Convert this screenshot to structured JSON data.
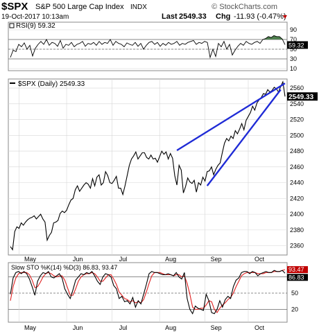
{
  "header": {
    "symbol": "$SPX",
    "name": "S&P 500 Large Cap Index",
    "exchange": "INDX",
    "datetime": "19-Oct-2017 10:13am",
    "last_label": "Last",
    "last_value": "2549.33",
    "chg_label": "Chg",
    "chg_value": "-11.93 (-0.47%)",
    "brand": "© StockCharts.com"
  },
  "chart_data": [
    {
      "type": "line",
      "panel": "rsi",
      "title": "RSI(9) 59.32",
      "current_label": "59.32",
      "ylim": [
        10,
        100
      ],
      "y_ticks": [
        10,
        30,
        50,
        70,
        90
      ],
      "reference_lines": [
        30,
        50,
        70
      ],
      "x": [
        0,
        1,
        2,
        3,
        4,
        5,
        6,
        7,
        8,
        9,
        10,
        11,
        12,
        13,
        14,
        15,
        16,
        17,
        18,
        19,
        20,
        21,
        22,
        23,
        24,
        25,
        26,
        27,
        28,
        29,
        30,
        31,
        32,
        33,
        34,
        35,
        36,
        37,
        38,
        39,
        40,
        41,
        42,
        43,
        44,
        45,
        46,
        47,
        48,
        49,
        50,
        51,
        52,
        53,
        54,
        55,
        56,
        57,
        58,
        59,
        60,
        61,
        62,
        63,
        64,
        65,
        66,
        67,
        68,
        69,
        70,
        71,
        72,
        73,
        74,
        75,
        76,
        77,
        78,
        79,
        80,
        81,
        82,
        83,
        84,
        85,
        86,
        87,
        88,
        89,
        90,
        91,
        92,
        93,
        94,
        95,
        96,
        97,
        98,
        99
      ],
      "values": [
        33,
        48,
        45,
        60,
        55,
        63,
        50,
        58,
        36,
        52,
        60,
        66,
        60,
        70,
        58,
        64,
        62,
        56,
        68,
        52,
        60,
        58,
        64,
        55,
        60,
        62,
        66,
        56,
        62,
        60,
        64,
        58,
        66,
        60,
        64,
        62,
        70,
        58,
        66,
        62,
        60,
        55,
        63,
        60,
        58,
        64,
        56,
        62,
        50,
        58,
        64,
        66,
        60,
        64,
        56,
        62,
        58,
        64,
        60,
        62,
        66,
        58,
        62,
        60,
        64,
        66,
        68,
        60,
        64,
        62,
        66,
        64,
        33,
        50,
        35,
        62,
        55,
        66,
        50,
        60,
        38,
        48,
        56,
        62,
        58,
        66,
        62,
        60,
        64,
        66,
        62,
        70,
        72,
        76,
        74,
        78,
        76,
        76,
        71,
        59.32
      ],
      "overbought_fill_above": 70
    },
    {
      "type": "line",
      "panel": "price",
      "title": "$SPX (Daily) 2549.33",
      "current_label": "2549.33",
      "ylim": [
        2350,
        2568
      ],
      "y_ticks": [
        2360,
        2380,
        2400,
        2420,
        2440,
        2460,
        2480,
        2500,
        2520,
        2540,
        2560
      ],
      "x_tick_labels": [
        "May",
        "Jun",
        "Jul",
        "Aug",
        "Sep",
        "Oct"
      ],
      "x_tick_positions": [
        4,
        26,
        47,
        69,
        90,
        110
      ],
      "x": [
        0,
        1,
        2,
        3,
        4,
        5,
        6,
        7,
        8,
        9,
        10,
        11,
        12,
        13,
        14,
        15,
        16,
        17,
        18,
        19,
        20,
        21,
        22,
        23,
        24,
        25,
        26,
        27,
        28,
        29,
        30,
        31,
        32,
        33,
        34,
        35,
        36,
        37,
        38,
        39,
        40,
        41,
        42,
        43,
        44,
        45,
        46,
        47,
        48,
        49,
        50,
        51,
        52,
        53,
        54,
        55,
        56,
        57,
        58,
        59,
        60,
        61,
        62,
        63,
        64,
        65,
        66,
        67,
        68,
        69,
        70,
        71,
        72,
        73,
        74,
        75,
        76,
        77,
        78,
        79,
        80,
        81,
        82,
        83,
        84,
        85,
        86,
        87,
        88,
        89,
        90,
        91,
        92,
        93,
        94,
        95,
        96,
        97,
        98,
        99,
        100,
        101,
        102,
        103,
        104,
        105,
        106,
        107,
        108,
        109,
        110,
        111,
        112,
        113,
        114,
        115,
        116,
        117,
        118,
        119,
        120,
        121,
        122,
        123,
        124,
        125,
        126,
        127
      ],
      "values": [
        2359,
        2355,
        2378,
        2384,
        2382,
        2389,
        2386,
        2390,
        2393,
        2395,
        2396,
        2398,
        2394,
        2397,
        2400,
        2394,
        2390,
        2367,
        2373,
        2377,
        2389,
        2390,
        2392,
        2401,
        2404,
        2402,
        2405,
        2412,
        2418,
        2420,
        2431,
        2436,
        2429,
        2433,
        2437,
        2440,
        2438,
        2433,
        2445,
        2436,
        2447,
        2450,
        2437,
        2440,
        2454,
        2449,
        2440,
        2439,
        2443,
        2448,
        2433,
        2433,
        2425,
        2436,
        2449,
        2462,
        2470,
        2474,
        2479,
        2470,
        2474,
        2478,
        2478,
        2472,
        2470,
        2475,
        2470,
        2471,
        2466,
        2473,
        2480,
        2476,
        2479,
        2470,
        2477,
        2471,
        2449,
        2437,
        2462,
        2456,
        2427,
        2435,
        2446,
        2441,
        2439,
        2443,
        2428,
        2440,
        2437,
        2447,
        2442,
        2454,
        2455,
        2460,
        2450,
        2457,
        2462,
        2465,
        2478,
        2490,
        2496,
        2493,
        2499,
        2496,
        2506,
        2502,
        2508,
        2515,
        2507,
        2519,
        2524,
        2529,
        2537,
        2532,
        2541,
        2545,
        2548,
        2553,
        2552,
        2558,
        2555,
        2557,
        2561,
        2559,
        2555,
        2562,
        2568,
        2549.33
      ],
      "trendlines": [
        {
          "from": [
            77,
            2481
          ],
          "to": [
            127,
            2566
          ]
        },
        {
          "from": [
            91,
            2436
          ],
          "to": [
            125,
            2558
          ]
        }
      ]
    },
    {
      "type": "line",
      "panel": "stochastic",
      "title": "Slow STO %K(14) %D(3) 86.83, 93.47",
      "series": [
        {
          "name": "%K(14)",
          "values": [
            48,
            78,
            88,
            90,
            86,
            90,
            86,
            76,
            62,
            46,
            72,
            82,
            88,
            86,
            90,
            80,
            78,
            82,
            86,
            78,
            58,
            48,
            40,
            56,
            74,
            80,
            86,
            84,
            88,
            86,
            90,
            82,
            72,
            66,
            80,
            86,
            84,
            80,
            64,
            58,
            40,
            44,
            34,
            36,
            30,
            42,
            24,
            36,
            30,
            48,
            66,
            86,
            90,
            88,
            88,
            86,
            84,
            84,
            86,
            84,
            82,
            88,
            80,
            76,
            88,
            40,
            20,
            12,
            26,
            22,
            20,
            18,
            48,
            36,
            14,
            12,
            20,
            36,
            24,
            38,
            44,
            40,
            62,
            74,
            78,
            88,
            90,
            90,
            86,
            90,
            88,
            82,
            86,
            88,
            90,
            88,
            88,
            92,
            90,
            90,
            92,
            86.83
          ]
        },
        {
          "name": "%D(3)",
          "values": [
            36,
            62,
            78,
            86,
            88,
            88,
            88,
            84,
            74,
            60,
            62,
            70,
            80,
            86,
            88,
            86,
            82,
            80,
            82,
            82,
            74,
            60,
            46,
            46,
            58,
            72,
            80,
            84,
            86,
            86,
            88,
            86,
            80,
            72,
            72,
            78,
            84,
            84,
            76,
            66,
            52,
            46,
            40,
            38,
            34,
            36,
            32,
            34,
            32,
            38,
            52,
            68,
            82,
            88,
            88,
            88,
            86,
            84,
            84,
            84,
            82,
            84,
            84,
            80,
            82,
            68,
            48,
            24,
            20,
            20,
            22,
            22,
            28,
            36,
            34,
            20,
            14,
            22,
            28,
            32,
            38,
            42,
            50,
            62,
            72,
            82,
            86,
            88,
            88,
            88,
            88,
            86,
            86,
            86,
            88,
            88,
            88,
            90,
            90,
            90,
            92,
            93.47
          ]
        }
      ],
      "current_labels": [
        "93.47",
        "86.83"
      ],
      "ylim": [
        0,
        100
      ],
      "y_ticks": [
        20,
        50,
        80
      ],
      "reference_lines": [
        20,
        50,
        80
      ],
      "x_tick_labels": [
        "May",
        "Jun",
        "Jul",
        "Aug",
        "Sep",
        "Oct"
      ],
      "x_tick_positions": [
        4,
        26,
        47,
        69,
        90,
        110
      ]
    }
  ],
  "colors": {
    "price_line": "#000000",
    "trendline": "#1f2bd6",
    "k_line": "#000000",
    "d_line": "#e02020",
    "rsi_fill": "#4e7f4e",
    "grid": "#d6d6d6",
    "chg_down": "#c00000",
    "label_box": "#000000"
  }
}
